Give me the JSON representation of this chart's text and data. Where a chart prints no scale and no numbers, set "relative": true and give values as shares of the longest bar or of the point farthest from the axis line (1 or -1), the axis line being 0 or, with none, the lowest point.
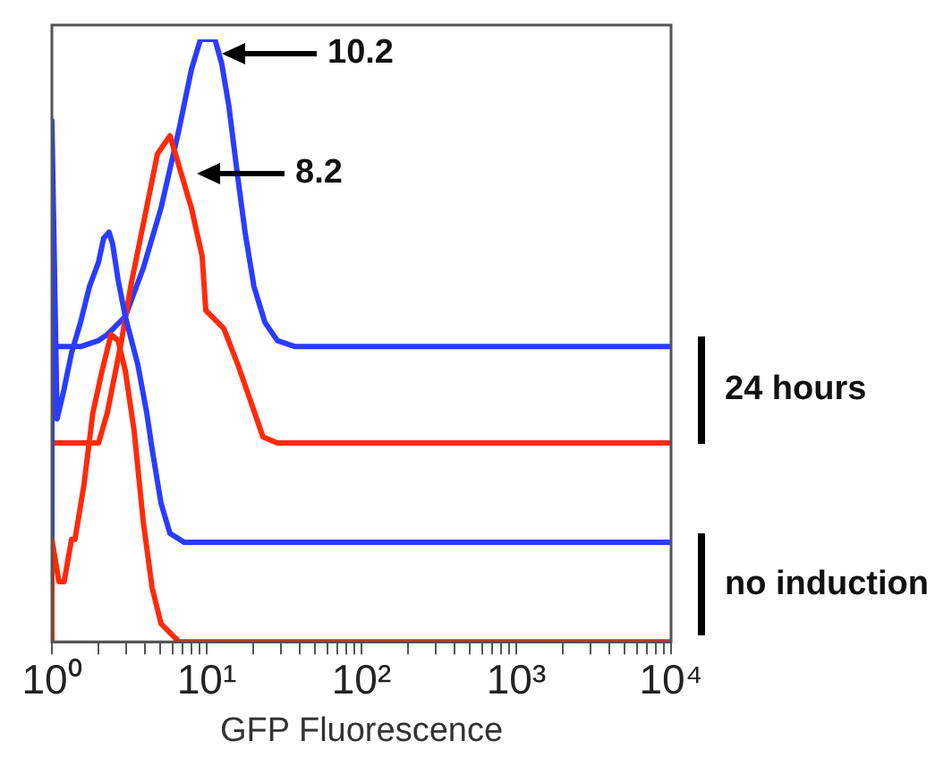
{
  "chart_data": {
    "type": "line",
    "relative": true,
    "xlabel": "GFP Fluorescence",
    "log": "x",
    "grid": false,
    "legend": false,
    "marker": "none",
    "line_style": "solid",
    "xlim": [
      1,
      10000
    ],
    "xticks": [
      {
        "value": 1,
        "label": "10⁰"
      },
      {
        "value": 2,
        "label": null
      },
      {
        "value": 3,
        "label": null
      },
      {
        "value": 4,
        "label": null
      },
      {
        "value": 5,
        "label": null
      },
      {
        "value": 6,
        "label": null
      },
      {
        "value": 7,
        "label": null
      },
      {
        "value": 8,
        "label": null
      },
      {
        "value": 9,
        "label": null
      },
      {
        "value": 10,
        "label": "10¹"
      },
      {
        "value": 20,
        "label": null
      },
      {
        "value": 30,
        "label": null
      },
      {
        "value": 40,
        "label": null
      },
      {
        "value": 50,
        "label": null
      },
      {
        "value": 60,
        "label": null
      },
      {
        "value": 70,
        "label": null
      },
      {
        "value": 80,
        "label": null
      },
      {
        "value": 90,
        "label": null
      },
      {
        "value": 100,
        "label": "10²"
      },
      {
        "value": 200,
        "label": null
      },
      {
        "value": 300,
        "label": null
      },
      {
        "value": 400,
        "label": null
      },
      {
        "value": 500,
        "label": null
      },
      {
        "value": 600,
        "label": null
      },
      {
        "value": 700,
        "label": null
      },
      {
        "value": 800,
        "label": null
      },
      {
        "value": 900,
        "label": null
      },
      {
        "value": 1000,
        "label": "10³"
      },
      {
        "value": 2000,
        "label": null
      },
      {
        "value": 3000,
        "label": null
      },
      {
        "value": 4000,
        "label": null
      },
      {
        "value": 5000,
        "label": null
      },
      {
        "value": 6000,
        "label": null
      },
      {
        "value": 7000,
        "label": null
      },
      {
        "value": 8000,
        "label": null
      },
      {
        "value": 9000,
        "label": null
      },
      {
        "value": 10000,
        "label": "10⁴"
      }
    ],
    "series": [
      {
        "color": "#ff2a0a",
        "x": [
          1,
          1,
          1.11,
          1.2,
          1.34,
          1.41,
          1.61,
          1.84,
          2.11,
          2.41,
          2.68,
          2.98,
          3.4,
          3.89,
          4.44,
          5.07,
          6.62,
          10000
        ],
        "values": [
          0,
          0.17,
          0.1,
          0.1,
          0.17,
          0.17,
          0.26,
          0.38,
          0.45,
          0.51,
          0.5,
          0.45,
          0.35,
          0.2,
          0.09,
          0.03,
          0,
          0
        ]
      },
      {
        "color": "#2a3cff",
        "x": [
          1,
          1,
          1.08,
          1.2,
          1.34,
          1.53,
          1.75,
          2.0,
          2.16,
          2.34,
          2.47,
          2.68,
          2.98,
          3.59,
          4.1,
          4.44,
          5.07,
          5.79,
          7.17,
          10000
        ],
        "values": [
          0.165,
          0.865,
          0.37,
          0.42,
          0.48,
          0.53,
          0.59,
          0.63,
          0.67,
          0.68,
          0.66,
          0.6,
          0.54,
          0.46,
          0.38,
          0.32,
          0.23,
          0.18,
          0.165,
          0.165
        ]
      },
      {
        "color": "#ff2a0a",
        "x": [
          1,
          2.0,
          2.28,
          2.82,
          3.23,
          4.81,
          5.79,
          6.28,
          6.98,
          7.97,
          9.35,
          9.87,
          12.9,
          15.9,
          19.2,
          23.1,
          28.6,
          10000
        ],
        "values": [
          0.33,
          0.33,
          0.38,
          0.5,
          0.59,
          0.81,
          0.84,
          0.81,
          0.77,
          0.72,
          0.64,
          0.55,
          0.52,
          0.46,
          0.4,
          0.34,
          0.33,
          0.33
        ]
      },
      {
        "color": "#2a3cff",
        "x": [
          1,
          1.53,
          2.0,
          2.28,
          2.98,
          3.89,
          5.07,
          6.62,
          7.97,
          9.12,
          11.3,
          12.5,
          13.9,
          15.9,
          17.7,
          20.2,
          23.8,
          28.6,
          37.3,
          10000
        ],
        "values": [
          0.49,
          0.49,
          0.5,
          0.51,
          0.54,
          0.62,
          0.72,
          0.85,
          0.95,
          1.0,
          1.0,
          0.96,
          0.89,
          0.77,
          0.68,
          0.59,
          0.53,
          0.5,
          0.49,
          0.49
        ]
      }
    ],
    "annotations": [
      "10.2",
      "8.2",
      "24 hours",
      "no induction"
    ]
  }
}
